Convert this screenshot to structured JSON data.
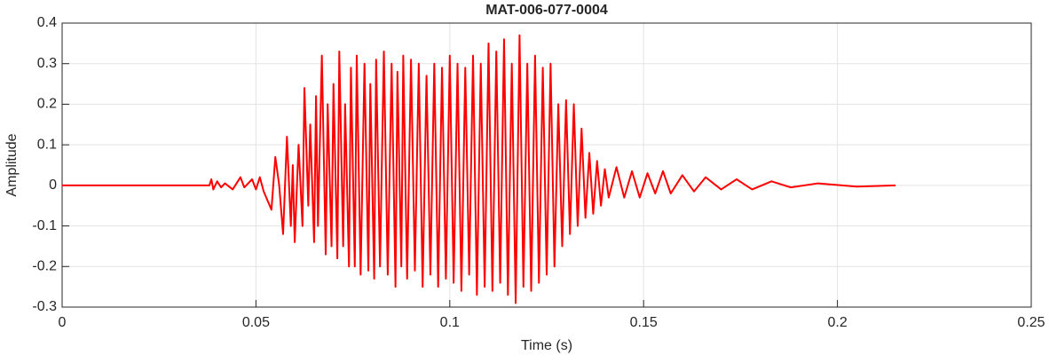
{
  "chart_data": {
    "type": "line",
    "title": "MAT-006-077-0004",
    "x_label": "Time (s)",
    "y_label": "Amplitude",
    "xlim": [
      0,
      0.25
    ],
    "ylim": [
      -0.3,
      0.4
    ],
    "xticks": [
      0,
      0.05,
      0.1,
      0.15,
      0.2,
      0.25
    ],
    "yticks": [
      -0.3,
      -0.2,
      -0.1,
      0,
      0.1,
      0.2,
      0.3,
      0.4
    ],
    "grid": true,
    "series": [
      {
        "color": "#ff0000",
        "x": [
          0,
          0.038,
          0.0385,
          0.039,
          0.04,
          0.041,
          0.042,
          0.044,
          0.046,
          0.047,
          0.049,
          0.05,
          0.051,
          0.052,
          0.054,
          0.055,
          0.056,
          0.057,
          0.058,
          0.059,
          0.0595,
          0.06,
          0.061,
          0.062,
          0.0625,
          0.0635,
          0.064,
          0.065,
          0.0655,
          0.066,
          0.067,
          0.068,
          0.0685,
          0.0695,
          0.07,
          0.071,
          0.0715,
          0.0725,
          0.073,
          0.074,
          0.0745,
          0.0755,
          0.076,
          0.077,
          0.078,
          0.079,
          0.0795,
          0.0805,
          0.081,
          0.082,
          0.083,
          0.084,
          0.085,
          0.086,
          0.0865,
          0.0875,
          0.088,
          0.089,
          0.09,
          0.091,
          0.092,
          0.093,
          0.094,
          0.095,
          0.096,
          0.097,
          0.098,
          0.099,
          0.1,
          0.101,
          0.102,
          0.103,
          0.104,
          0.105,
          0.106,
          0.107,
          0.108,
          0.109,
          0.11,
          0.111,
          0.112,
          0.113,
          0.114,
          0.115,
          0.116,
          0.117,
          0.118,
          0.119,
          0.12,
          0.121,
          0.122,
          0.123,
          0.124,
          0.125,
          0.126,
          0.127,
          0.128,
          0.129,
          0.13,
          0.131,
          0.132,
          0.133,
          0.134,
          0.135,
          0.136,
          0.137,
          0.138,
          0.139,
          0.14,
          0.141,
          0.143,
          0.145,
          0.147,
          0.149,
          0.151,
          0.153,
          0.155,
          0.157,
          0.16,
          0.163,
          0.166,
          0.17,
          0.174,
          0.178,
          0.183,
          0.188,
          0.195,
          0.205,
          0.215
        ],
        "values": [
          0,
          0,
          0.015,
          -0.01,
          0.01,
          -0.005,
          0.005,
          -0.01,
          0.02,
          -0.005,
          0.015,
          -0.01,
          0.02,
          -0.015,
          -0.06,
          0.07,
          0.0,
          -0.12,
          0.12,
          -0.1,
          0.05,
          -0.14,
          0.1,
          -0.1,
          0.24,
          -0.05,
          0.15,
          -0.14,
          0.22,
          -0.1,
          0.32,
          -0.17,
          0.2,
          -0.15,
          0.25,
          -0.18,
          0.33,
          -0.15,
          0.2,
          -0.2,
          0.29,
          -0.2,
          0.32,
          -0.22,
          0.3,
          -0.21,
          0.25,
          -0.23,
          0.31,
          -0.2,
          0.33,
          -0.22,
          0.3,
          -0.25,
          0.28,
          -0.2,
          0.32,
          -0.23,
          0.31,
          -0.21,
          0.3,
          -0.25,
          0.27,
          -0.22,
          0.3,
          -0.25,
          0.29,
          -0.23,
          0.32,
          -0.24,
          0.3,
          -0.26,
          0.29,
          -0.22,
          0.32,
          -0.27,
          0.3,
          -0.25,
          0.35,
          -0.26,
          0.33,
          -0.24,
          0.36,
          -0.27,
          0.3,
          -0.29,
          0.37,
          -0.25,
          0.3,
          -0.26,
          0.32,
          -0.24,
          0.29,
          -0.22,
          0.3,
          -0.2,
          0.2,
          -0.15,
          0.21,
          -0.12,
          0.2,
          -0.1,
          0.14,
          -0.08,
          0.08,
          -0.07,
          0.06,
          -0.05,
          0.04,
          -0.03,
          0.045,
          -0.03,
          0.035,
          -0.03,
          0.03,
          -0.02,
          0.035,
          -0.02,
          0.025,
          -0.015,
          0.02,
          -0.01,
          0.015,
          -0.01,
          0.01,
          -0.005,
          0.005,
          -0.003,
          0
        ]
      }
    ]
  }
}
